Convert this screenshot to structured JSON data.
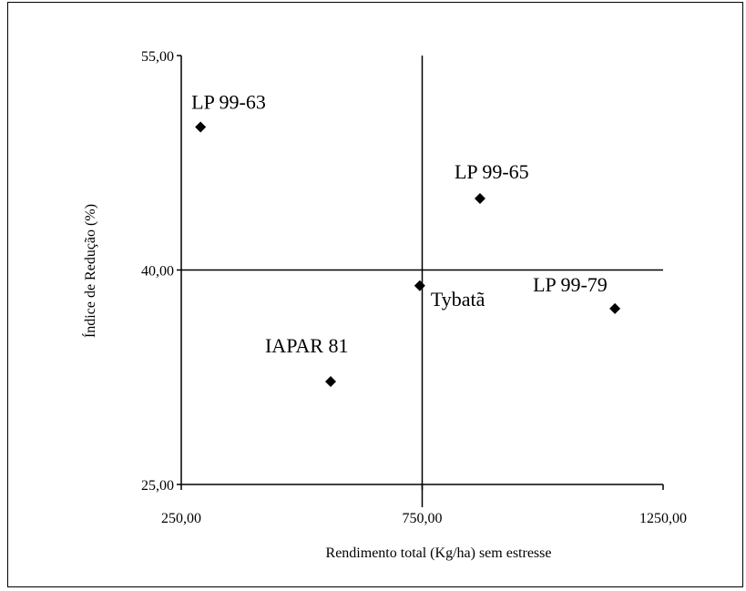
{
  "chart_data": {
    "type": "scatter",
    "title": "",
    "xlabel": "Rendimento total (Kg/ha) sem estresse",
    "ylabel": "Índice de Redução (%)",
    "xlim": [
      250,
      1250
    ],
    "ylim": [
      25,
      55
    ],
    "x_ticks": [
      250,
      750,
      1250
    ],
    "y_ticks": [
      25,
      40,
      55
    ],
    "x_tick_labels": [
      "250,00",
      "750,00",
      "1250,00"
    ],
    "y_tick_labels": [
      "25,00",
      "40,00",
      "55,00"
    ],
    "reference_lines": {
      "x": 750,
      "y": 40
    },
    "grid": false,
    "marker": "diamond",
    "marker_color": "#000000",
    "points": [
      {
        "label": "LP 99-63",
        "x": 290,
        "y": 50.0
      },
      {
        "label": "LP 99-65",
        "x": 870,
        "y": 45.0
      },
      {
        "label": "Tybatã",
        "x": 745,
        "y": 38.9
      },
      {
        "label": "LP 99-79",
        "x": 1150,
        "y": 37.3
      },
      {
        "label": "IAPAR 81",
        "x": 560,
        "y": 32.2
      }
    ]
  }
}
